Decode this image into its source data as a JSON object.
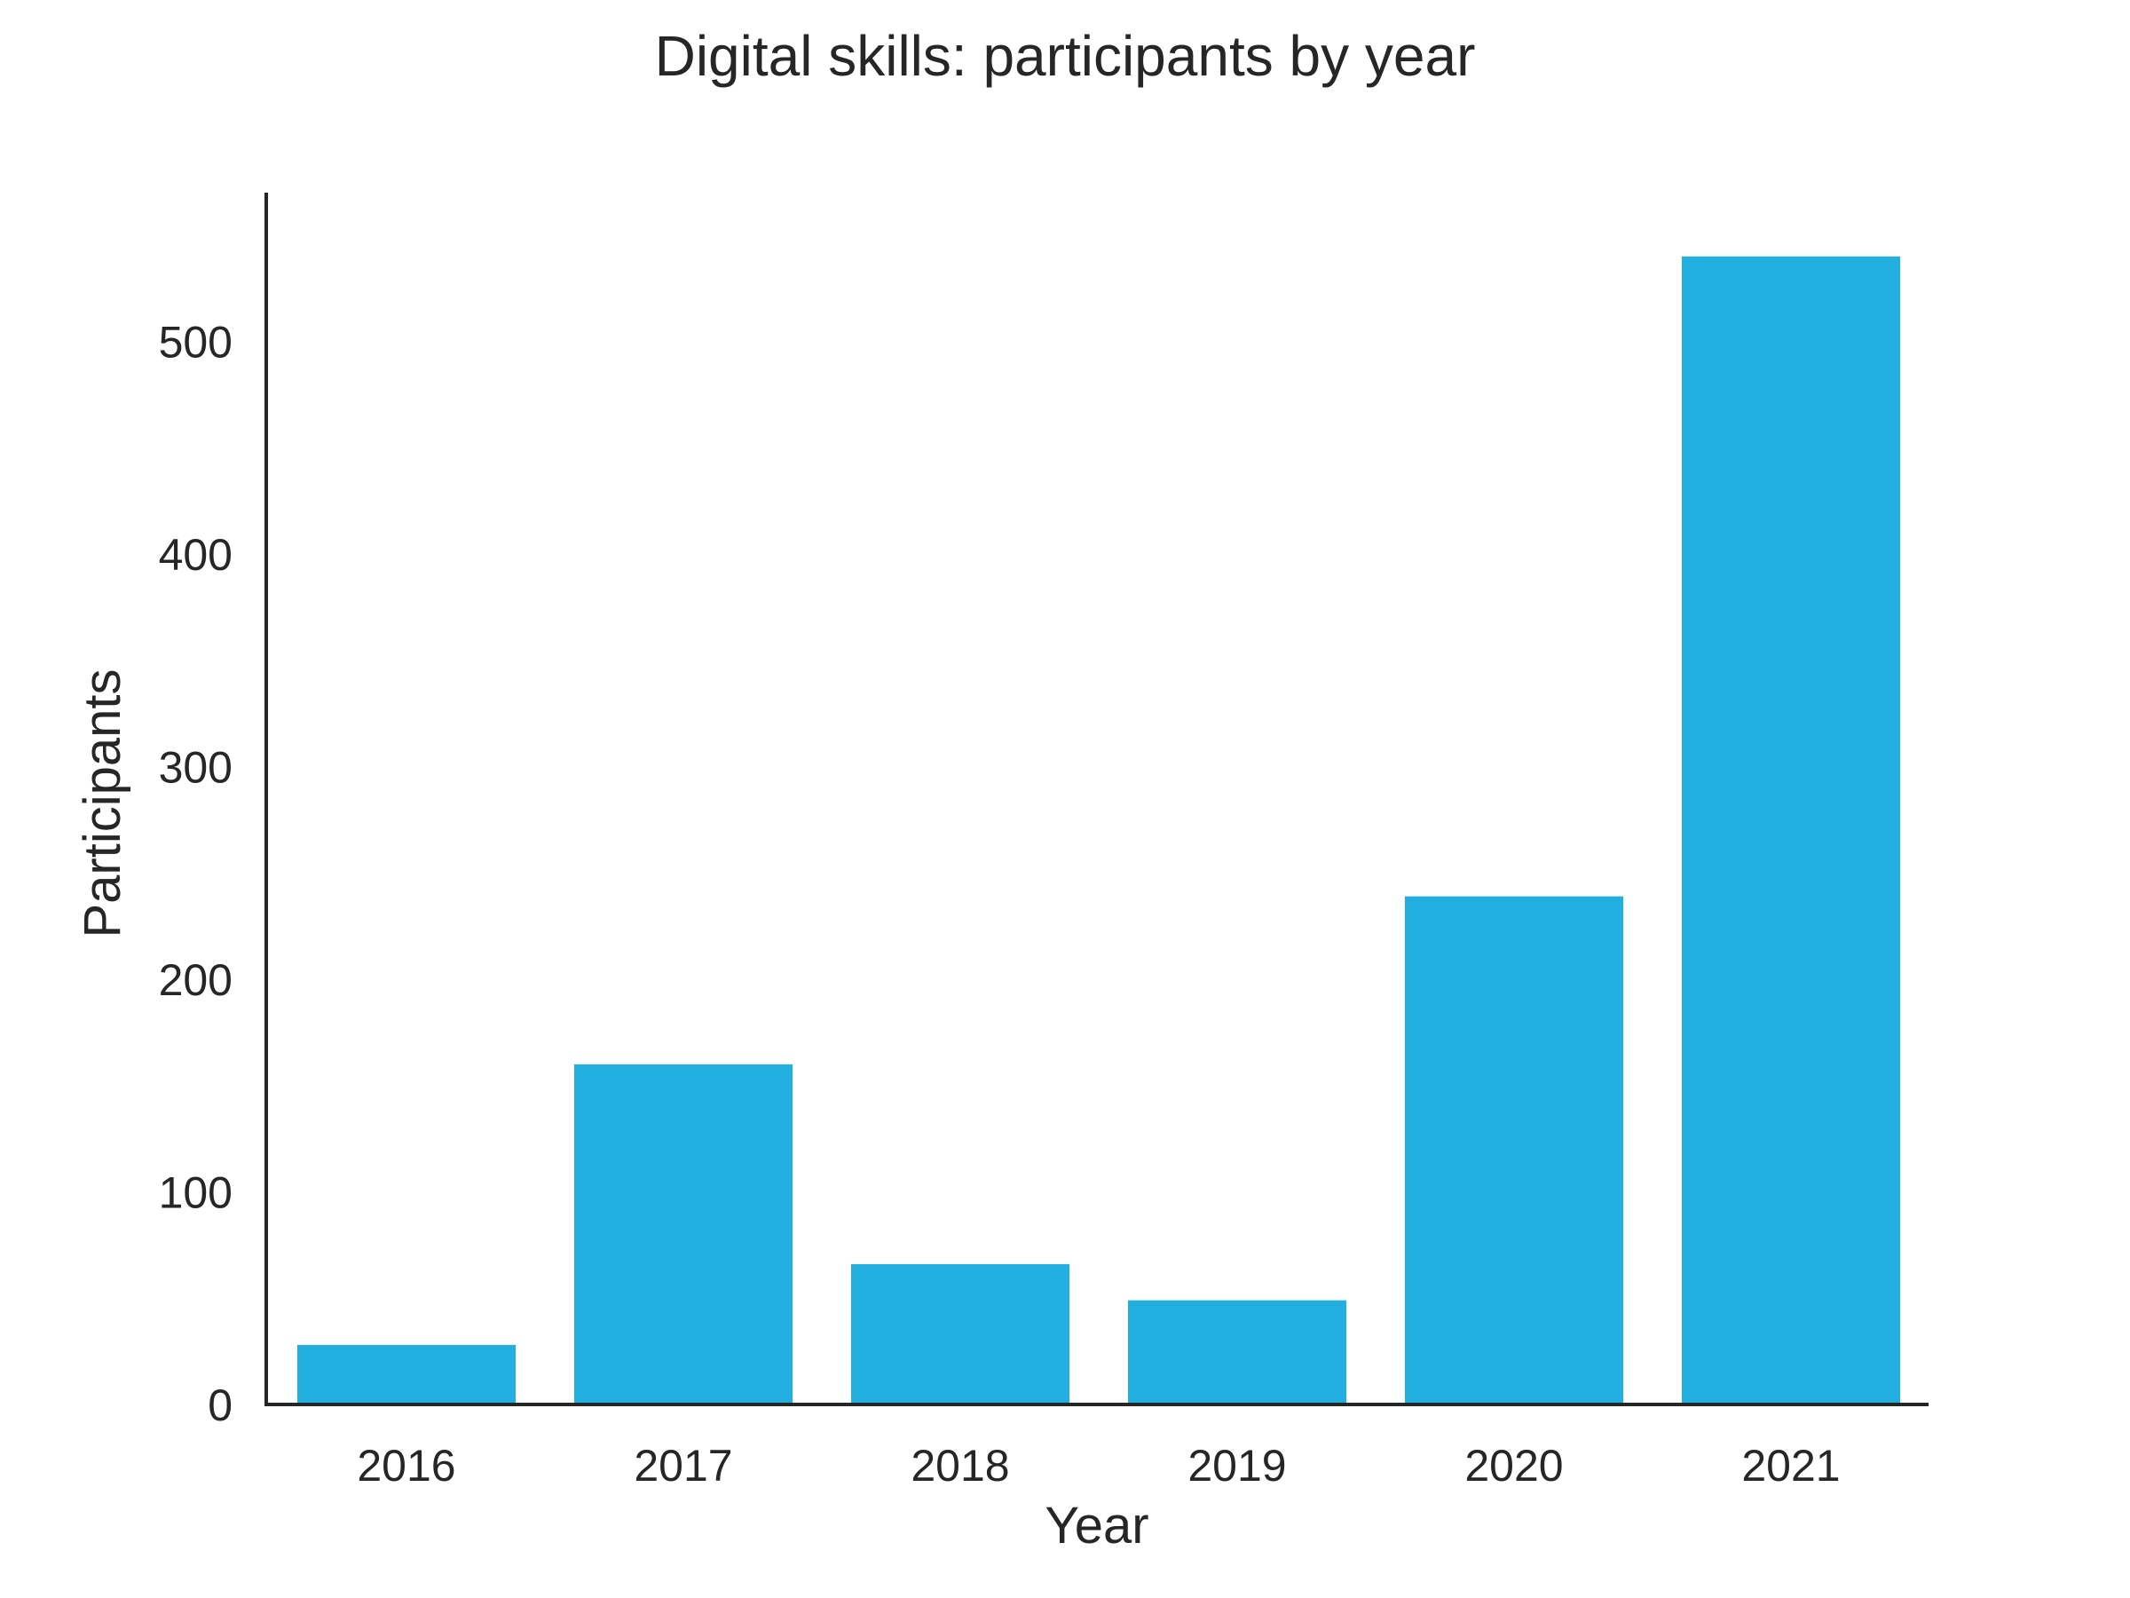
{
  "chart_data": {
    "type": "bar",
    "title": "Digital skills: participants by year",
    "xlabel": "Year",
    "ylabel": "Participants",
    "categories": [
      "2016",
      "2017",
      "2018",
      "2019",
      "2020",
      "2021"
    ],
    "values": [
      28,
      160,
      66,
      49,
      239,
      540
    ],
    "ylim": [
      0,
      570
    ],
    "yticks": [
      0,
      100,
      200,
      300,
      400,
      500
    ],
    "bar_color": "#22aedf",
    "grid": false,
    "legend": "none"
  }
}
